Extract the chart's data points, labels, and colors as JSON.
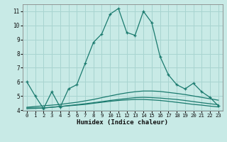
{
  "xlabel": "Humidex (Indice chaleur)",
  "bg_color": "#c8eae6",
  "grid_color": "#a8d4d0",
  "line_color": "#1a7a6e",
  "x_main": [
    0,
    1,
    2,
    3,
    4,
    5,
    6,
    7,
    8,
    9,
    10,
    11,
    12,
    13,
    14,
    15,
    16,
    17,
    18,
    19,
    20,
    21,
    22,
    23
  ],
  "y_main": [
    6.0,
    5.0,
    4.1,
    5.3,
    4.2,
    5.5,
    5.8,
    7.3,
    8.8,
    9.4,
    10.8,
    11.2,
    9.5,
    9.3,
    11.0,
    10.2,
    7.8,
    6.5,
    5.8,
    5.5,
    5.9,
    5.3,
    4.9,
    4.3
  ],
  "y_line1": [
    4.15,
    4.15,
    4.15,
    4.2,
    4.25,
    4.3,
    4.35,
    4.4,
    4.48,
    4.55,
    4.62,
    4.68,
    4.72,
    4.75,
    4.75,
    4.72,
    4.68,
    4.62,
    4.55,
    4.48,
    4.4,
    4.35,
    4.28,
    4.22
  ],
  "y_line2": [
    4.1,
    4.12,
    4.15,
    4.2,
    4.25,
    4.32,
    4.38,
    4.45,
    4.52,
    4.6,
    4.68,
    4.75,
    4.82,
    4.88,
    4.9,
    4.88,
    4.85,
    4.8,
    4.75,
    4.68,
    4.6,
    4.52,
    4.45,
    4.38
  ],
  "y_line3": [
    4.2,
    4.25,
    4.3,
    4.35,
    4.4,
    4.48,
    4.55,
    4.65,
    4.75,
    4.88,
    5.0,
    5.12,
    5.22,
    5.3,
    5.35,
    5.35,
    5.32,
    5.25,
    5.18,
    5.1,
    5.0,
    4.9,
    4.8,
    4.7
  ],
  "xlim": [
    -0.5,
    23.5
  ],
  "ylim": [
    3.95,
    11.5
  ],
  "yticks": [
    4,
    5,
    6,
    7,
    8,
    9,
    10,
    11
  ],
  "xticks": [
    0,
    1,
    2,
    3,
    4,
    5,
    6,
    7,
    8,
    9,
    10,
    11,
    12,
    13,
    14,
    15,
    16,
    17,
    18,
    19,
    20,
    21,
    22,
    23
  ]
}
